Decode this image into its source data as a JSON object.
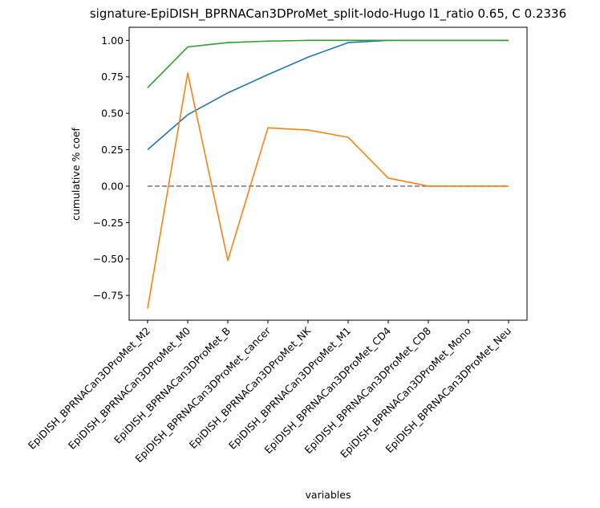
{
  "chart_data": {
    "type": "line",
    "title": "signature-EpiDISH_BPRNACan3DProMet_split-lodo-Hugo l1_ratio 0.65, C 0.2336",
    "xlabel": "variables",
    "ylabel": "cumulative % coef",
    "categories": [
      "EpiDISH_BPRNACan3DProMet_M2",
      "EpiDISH_BPRNACan3DProMet_M0",
      "EpiDISH_BPRNACan3DProMet_B",
      "EpiDISH_BPRNACan3DProMet_cancer",
      "EpiDISH_BPRNACan3DProMet_NK",
      "EpiDISH_BPRNACan3DProMet_M1",
      "EpiDISH_BPRNACan3DProMet_CD4",
      "EpiDISH_BPRNACan3DProMet_CD8",
      "EpiDISH_BPRNACan3DProMet_Mono",
      "EpiDISH_BPRNACan3DProMet_Neu"
    ],
    "ylim": [
      -0.92,
      1.09
    ],
    "yticks": [
      -0.75,
      -0.5,
      -0.25,
      0.0,
      0.25,
      0.5,
      0.75,
      1.0
    ],
    "ytick_labels": [
      "−0.75",
      "−0.50",
      "−0.25",
      "0.00",
      "0.25",
      "0.50",
      "0.75",
      "1.00"
    ],
    "grid": false,
    "series": [
      {
        "color": "#1f77b4",
        "style": "solid",
        "values": [
          0.25,
          0.49,
          0.64,
          0.765,
          0.885,
          0.985,
          1.0,
          1.0,
          1.0,
          1.0
        ]
      },
      {
        "color": "#ff7f0e",
        "style": "solid",
        "values": [
          -0.84,
          0.775,
          -0.51,
          0.4,
          0.385,
          0.335,
          0.055,
          0.0,
          0.0,
          0.0
        ]
      },
      {
        "color": "#2ca02c",
        "style": "solid",
        "values": [
          0.675,
          0.955,
          0.985,
          0.995,
          1.0,
          1.0,
          1.0,
          1.0,
          1.0,
          1.0
        ]
      },
      {
        "color": "#808080",
        "style": "dashed",
        "values": [
          0,
          0,
          0,
          0,
          0,
          0,
          0,
          0,
          0,
          0
        ]
      }
    ]
  }
}
